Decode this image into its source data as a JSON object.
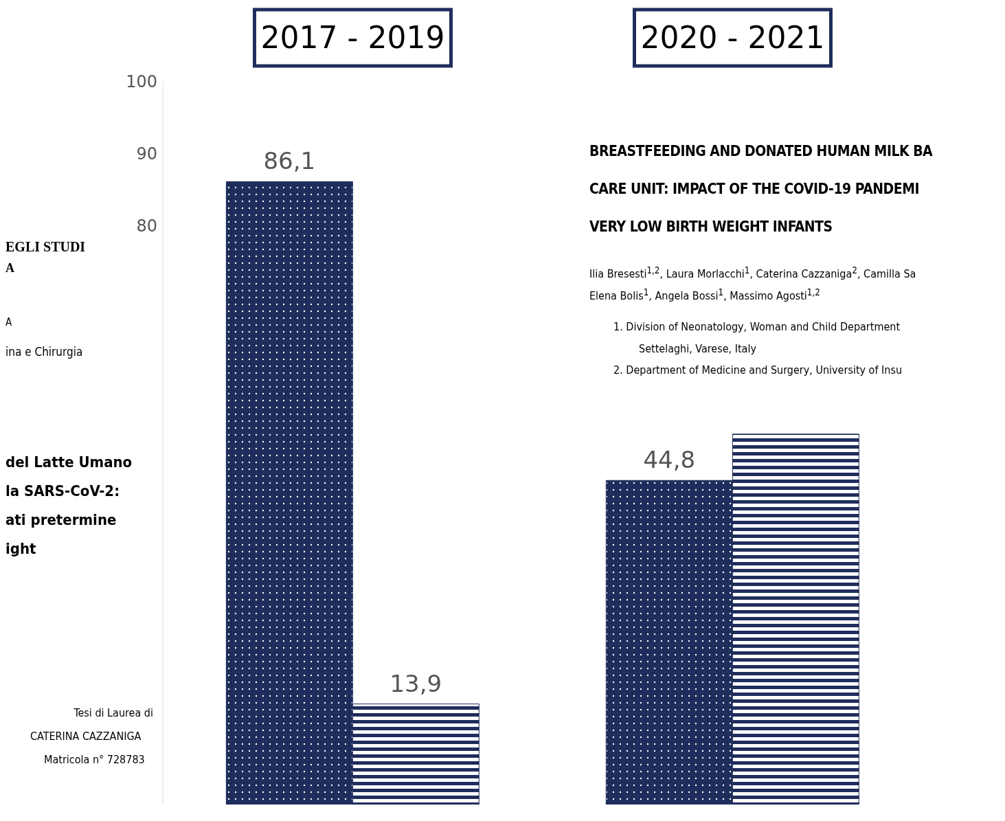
{
  "chart_data": {
    "type": "bar",
    "categories": [
      "2017 - 2019",
      "2020 - 2021"
    ],
    "series": [
      {
        "color": "#1f2d5c",
        "values": [
          86.1,
          44.8
        ],
        "value_labels": [
          "86,1",
          "44,8"
        ]
      },
      {
        "color": "#1f2d5c",
        "values": [
          13.9,
          51.2
        ],
        "value_labels": [
          "13,9",
          null
        ]
      }
    ],
    "ylim": [
      0,
      100
    ],
    "yticks": [
      80,
      90,
      100
    ],
    "annotations": [
      "EGLI STUDI",
      "A",
      "A",
      "ina e Chirurgia",
      "del Latte Umano",
      "la SARS-CoV-2:",
      "ati pretermine",
      "ight",
      "Tesi di Laurea di",
      "CATERINA CAZZANIGA",
      "Matricola n° 728783",
      "BREASTFEEDING AND DONATED HUMAN MILK BA",
      "CARE UNIT: IMPACT OF THE COVID-19 PANDEMI",
      "VERY LOW BIRTH WEIGHT INFANTS",
      "Ilia Bresesti$^{1,2}$, Laura Morlacchi$^{1}$, Caterina Cazzaniga$^{2}$, Camilla Sa",
      "Elena Bolis$^{1}$, Angela Bossi$^{1}$, Massimo Agosti$^{1,2}$",
      "1. Division of Neonatology, Woman and Child Department",
      "Settelaghi, Varese, Italy",
      "2. Department of Medicine and Surgery, University of Insu"
    ]
  }
}
